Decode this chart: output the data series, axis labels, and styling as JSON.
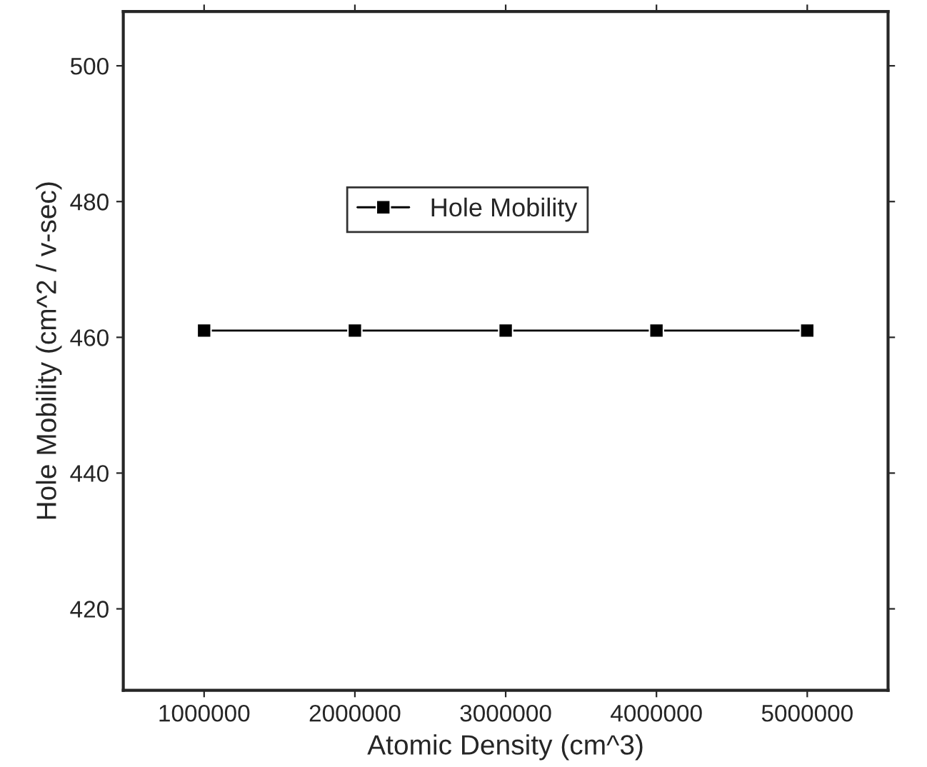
{
  "chart_data": {
    "type": "line",
    "xlabel": "Atomic Density (cm^3)",
    "ylabel": "Hole Mobility (cm^2 / v-sec)",
    "x": [
      1000000,
      2000000,
      3000000,
      4000000,
      5000000
    ],
    "series": [
      {
        "name": "Hole Mobility",
        "color": "#000000",
        "values": [
          461,
          461,
          461,
          461,
          461
        ]
      }
    ],
    "xlim": [
      464000,
      5536000
    ],
    "xticks": [
      1000000,
      2000000,
      3000000,
      4000000,
      5000000
    ],
    "ylim": [
      408,
      508
    ],
    "yticks": [
      420,
      440,
      460,
      480,
      500
    ],
    "marker": "square",
    "line_style": "solid",
    "legend": "top",
    "grid": false
  }
}
